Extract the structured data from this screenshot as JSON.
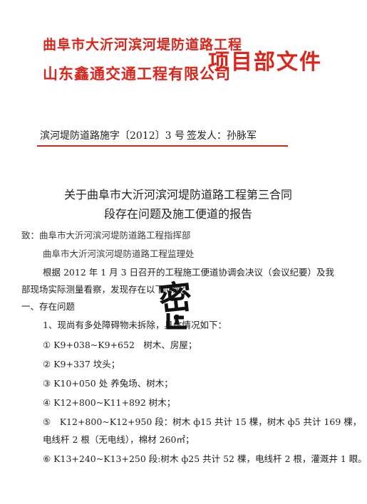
{
  "header": {
    "project_line": "曲阜市大沂河滨河堤防道路工程",
    "company_line": "山东鑫通交通工程有限公司",
    "stamp_text": "项目部文件"
  },
  "meta": {
    "doc_number": "滨河堤防道路施字〔2012〕3 号",
    "signer": "签发人：孙脉军"
  },
  "title": {
    "line1": "关于曲阜市大沂河滨河堤防道路工程第三合同",
    "line2": "段存在问题及施工便道的报告"
  },
  "body": {
    "to_line1": "致：曲阜市大沂河滨河堤防道路工程指挥部",
    "to_line2": "曲阜市大沂河滨河堤防道路工程监理处",
    "para1_a": "根据 2012 年 1 月 3 日召开的工程施工便道协调会决议（会议纪要）及我",
    "para1_b": "部现场实际测量看察，发现存在以下问题：",
    "section1": "一、存在问题",
    "item_intro": "1、现尚有多处障碍物未拆除，具体情况如下：",
    "items": [
      "① K9+038~K9+652　树木、房屋；",
      "② K9+337 坟头；",
      "③ K10+050 处 养兔场、树木；",
      "④ K12+800~K11+892 树木；",
      "⑤　K12+800~K12+950 段：树木 ф15 共计 15 棵，树木 ф5 共计 169 棵，",
      "电线杆 2 根（无电线），棉材 260㎡；",
      "⑥ K13+240~K13+250 段:树木 ф25 共计 52 棵，电线杆 2 根，灌溉井 1 眼。"
    ],
    "seal_text": "密"
  }
}
